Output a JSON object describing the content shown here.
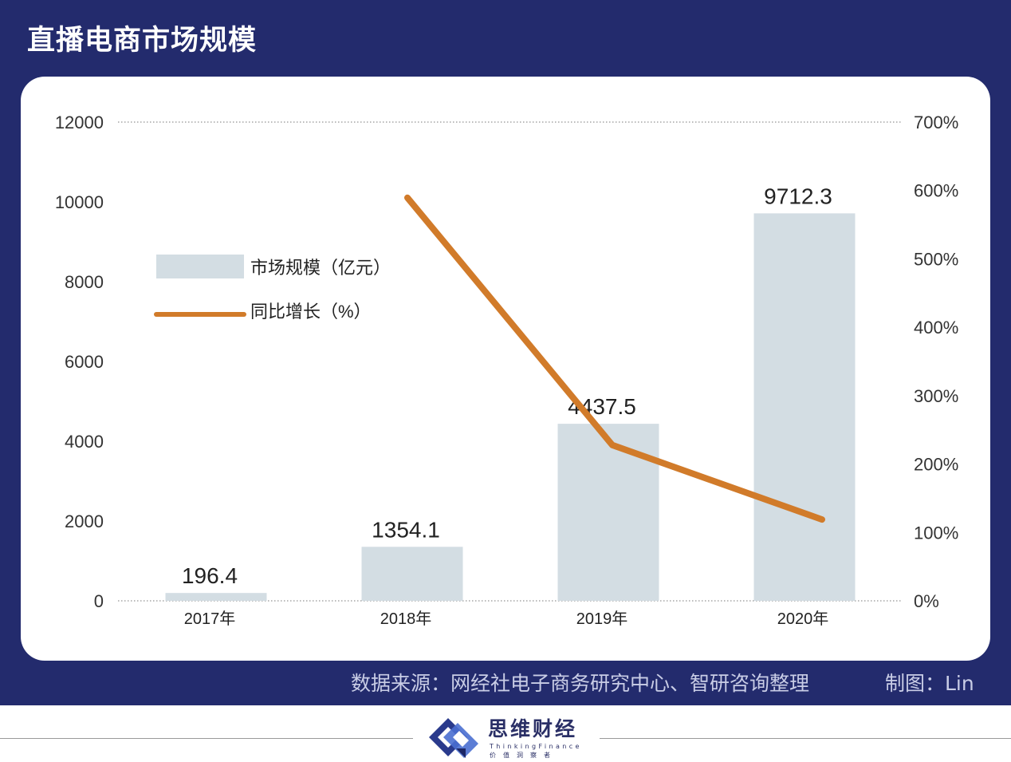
{
  "title": "直播电商市场规模",
  "chart_data": {
    "type": "bar",
    "categories": [
      "2017年",
      "2018年",
      "2019年",
      "2020年"
    ],
    "series": [
      {
        "name": "市场规模（亿元）",
        "type": "bar",
        "axis": "left",
        "values": [
          196.4,
          1354.1,
          4437.5,
          9712.3
        ],
        "labels": [
          "196.4",
          "1354.1",
          "4437.5",
          "9712.3"
        ]
      },
      {
        "name": "同比增长（%）",
        "type": "line",
        "axis": "right",
        "values": [
          null,
          589.4,
          227.7,
          118.9
        ]
      }
    ],
    "y_left": {
      "min": 0,
      "max": 12000,
      "ticks": [
        "0",
        "2000",
        "4000",
        "6000",
        "8000",
        "10000",
        "12000"
      ]
    },
    "y_right": {
      "min": 0,
      "max": 700,
      "ticks": [
        "0%",
        "100%",
        "200%",
        "300%",
        "400%",
        "500%",
        "600%",
        "700%"
      ]
    },
    "legend_placement": "upper-left",
    "grid": "dotted top and baseline only",
    "colors": {
      "bar": "#d3dde3",
      "line": "#d17b2a",
      "axis_text": "#333333"
    }
  },
  "footer": {
    "source": "数据来源：网经社电子商务研究中心、智研咨询整理",
    "credit": "制图：Lin"
  },
  "logo": {
    "name": "思维财经",
    "english": "ThinkingFinance",
    "tagline": "价值洞察者"
  },
  "colors": {
    "banner": "#232b6d",
    "card": "#ffffff"
  }
}
